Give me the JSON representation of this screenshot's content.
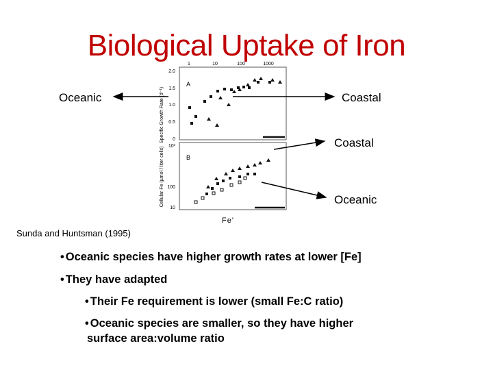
{
  "slide": {
    "title": "Biological Uptake of Iron",
    "labels": {
      "oceanic_top": "Oceanic",
      "coastal_top": "Coastal",
      "coastal_bottom": "Coastal",
      "oceanic_bottom": "Oceanic"
    },
    "citation": "Sunda and Huntsman (1995)",
    "fe_axis_label": "Fe'",
    "bullets": [
      "Oceanic species have higher growth rates at  lower [Fe]",
      "They have adapted",
      "Their Fe requirement is lower (small Fe:C ratio)",
      "Oceanic species are smaller, so they have higher",
      "surface area:volume ratio"
    ]
  },
  "colors": {
    "title": "#c00000",
    "text": "#000000"
  },
  "figure": {
    "panel_a": {
      "letter": "A",
      "ylabel": "Specific Growth Rate (d⁻¹)",
      "y_ticks": [
        "2.0",
        "1.5",
        "1.0",
        "0.5",
        "0"
      ],
      "x_ticks": [
        "1",
        "10",
        "100",
        "1000"
      ]
    },
    "panel_b": {
      "letter": "B",
      "ylabel": "Cellular Fe (µmol / liter cells)",
      "y_ticks": [
        "10³",
        "100",
        "10"
      ]
    }
  }
}
